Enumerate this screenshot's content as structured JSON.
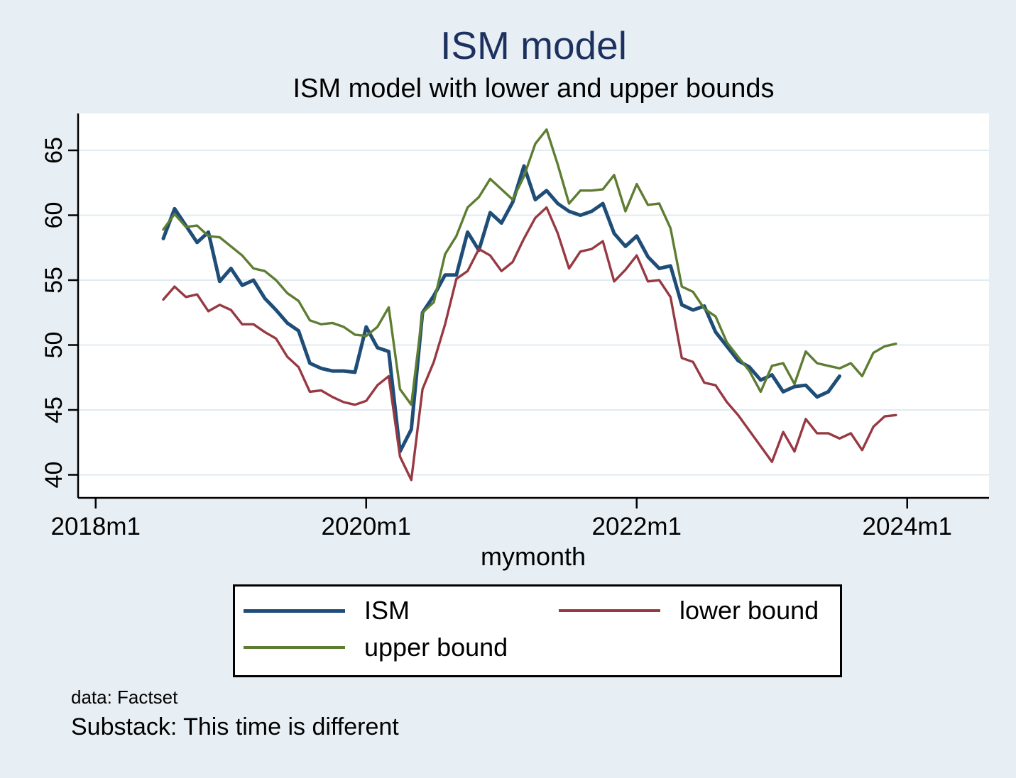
{
  "title": "ISM model",
  "subtitle": "ISM model with lower and upper bounds",
  "x_axis": {
    "label": "mymonth",
    "tick_labels": [
      "2018m1",
      "2020m1",
      "2022m1",
      "2024m1"
    ]
  },
  "y_axis": {
    "tick_labels": [
      "40",
      "45",
      "50",
      "55",
      "60",
      "65"
    ]
  },
  "legend": [
    {
      "label": "ISM",
      "color": "#1e4d77",
      "sample_thickness": 5
    },
    {
      "label": "lower bound",
      "color": "#973942",
      "sample_thickness": 4
    },
    {
      "label": "upper bound",
      "color": "#5e7d32",
      "sample_thickness": 4
    }
  ],
  "notes": {
    "source": "data: Factset",
    "caption": "Substack: This time is different"
  },
  "colors": {
    "page_background": "#e8eff4",
    "plot_background": "#ffffff",
    "gridline": "#e0ebf2",
    "axis": "#000000",
    "title_text": "#1d3160",
    "ism_line": "#1e4d77",
    "lower_bound_line": "#973942",
    "upper_bound_line": "#5e7d32"
  },
  "chart_data": {
    "type": "line",
    "xlabel": "mymonth",
    "ylabel": "",
    "ylim": [
      38.2,
      67.8
    ],
    "y_ticks": [
      40,
      45,
      50,
      55,
      60,
      65
    ],
    "grid": true,
    "legend_position": "bottom",
    "x_ticks": [
      {
        "label": "2018m1",
        "month_offset": -6
      },
      {
        "label": "2020m1",
        "month_offset": 18
      },
      {
        "label": "2022m1",
        "month_offset": 42
      },
      {
        "label": "2024m1",
        "month_offset": 66
      }
    ],
    "months": [
      "2018m7",
      "2018m8",
      "2018m9",
      "2018m10",
      "2018m11",
      "2018m12",
      "2019m1",
      "2019m2",
      "2019m3",
      "2019m4",
      "2019m5",
      "2019m6",
      "2019m7",
      "2019m8",
      "2019m9",
      "2019m10",
      "2019m11",
      "2019m12",
      "2020m1",
      "2020m2",
      "2020m3",
      "2020m4",
      "2020m5",
      "2020m6",
      "2020m7",
      "2020m8",
      "2020m9",
      "2020m10",
      "2020m11",
      "2020m12",
      "2021m1",
      "2021m2",
      "2021m3",
      "2021m4",
      "2021m5",
      "2021m6",
      "2021m7",
      "2021m8",
      "2021m9",
      "2021m10",
      "2021m11",
      "2021m12",
      "2022m1",
      "2022m2",
      "2022m3",
      "2022m4",
      "2022m5",
      "2022m6",
      "2022m7",
      "2022m8",
      "2022m9",
      "2022m10",
      "2022m11",
      "2022m12",
      "2023m1",
      "2023m2",
      "2023m3",
      "2023m4",
      "2023m5",
      "2023m6",
      "2023m7",
      "2023m8",
      "2023m9",
      "2023m10",
      "2023m11",
      "2023m12"
    ],
    "series": [
      {
        "name": "ISM",
        "color": "#1e4d77",
        "line_width": 5,
        "values": [
          58.2,
          60.5,
          59.2,
          57.9,
          58.7,
          54.9,
          55.9,
          54.6,
          55.0,
          53.6,
          52.7,
          51.7,
          51.1,
          48.6,
          48.2,
          48.0,
          48.0,
          47.9,
          51.4,
          49.8,
          49.5,
          41.8,
          43.5,
          52.5,
          53.8,
          55.4,
          55.4,
          58.7,
          57.3,
          60.2,
          59.4,
          61.0,
          63.8,
          61.2,
          61.9,
          60.9,
          60.3,
          60.0,
          60.3,
          60.9,
          58.6,
          57.6,
          58.4,
          56.8,
          55.9,
          56.1,
          53.1,
          52.7,
          53.0,
          51.0,
          49.9,
          48.8,
          48.3,
          47.3,
          47.7,
          46.4,
          46.8,
          46.9,
          46.0,
          46.4,
          47.6
        ]
      },
      {
        "name": "lower bound",
        "color": "#973942",
        "line_width": 3.4,
        "values": [
          53.5,
          54.5,
          53.7,
          53.9,
          52.6,
          53.1,
          52.7,
          51.6,
          51.6,
          51.0,
          50.5,
          49.1,
          48.3,
          46.4,
          46.5,
          46.0,
          45.6,
          45.4,
          45.7,
          46.9,
          47.6,
          41.4,
          39.6,
          46.6,
          48.7,
          51.6,
          55.1,
          55.7,
          57.4,
          56.9,
          55.7,
          56.4,
          58.2,
          59.8,
          60.6,
          58.6,
          55.9,
          57.2,
          57.4,
          58.0,
          54.9,
          55.8,
          56.9,
          54.9,
          55.0,
          53.7,
          49.0,
          48.7,
          47.1,
          46.9,
          45.6,
          44.6,
          43.4,
          42.2,
          41.0,
          43.3,
          41.8,
          44.3,
          43.2,
          43.2,
          42.8,
          43.2,
          41.9,
          43.7,
          44.5,
          44.6
        ]
      },
      {
        "name": "upper bound",
        "color": "#5e7d32",
        "line_width": 3.4,
        "values": [
          58.9,
          60.1,
          59.1,
          59.2,
          58.4,
          58.3,
          57.6,
          56.9,
          55.9,
          55.7,
          55.0,
          54.0,
          53.4,
          51.9,
          51.6,
          51.7,
          51.4,
          50.8,
          50.7,
          51.4,
          52.9,
          46.6,
          45.4,
          52.5,
          53.3,
          57.0,
          58.4,
          60.6,
          61.4,
          62.8,
          62.0,
          61.2,
          63.0,
          65.5,
          66.6,
          63.9,
          60.9,
          61.9,
          61.9,
          62.0,
          63.1,
          60.3,
          62.4,
          60.8,
          60.9,
          59.0,
          54.5,
          54.1,
          52.8,
          52.2,
          50.2,
          49.1,
          48.0,
          46.4,
          48.4,
          48.6,
          47.0,
          49.5,
          48.6,
          48.4,
          48.2,
          48.6,
          47.6,
          49.4,
          49.9,
          50.1
        ]
      }
    ]
  }
}
